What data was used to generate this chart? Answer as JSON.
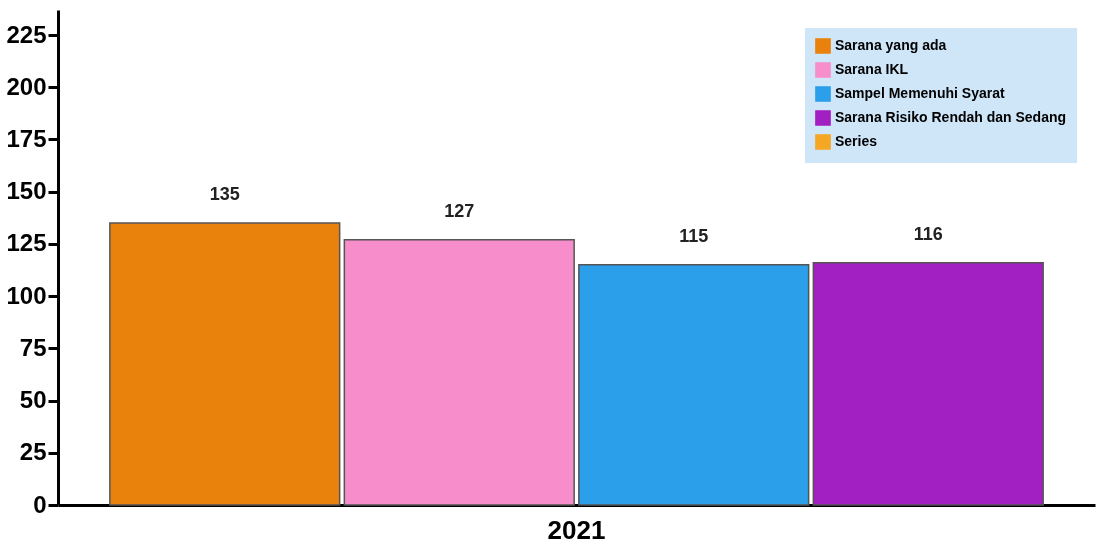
{
  "chart_data": {
    "type": "bar",
    "categories": [
      "2021"
    ],
    "series": [
      {
        "name": "Sarana yang ada",
        "color": "#e8820c",
        "values": [
          135
        ]
      },
      {
        "name": "Sarana IKL",
        "color": "#f78dcb",
        "values": [
          127
        ]
      },
      {
        "name": "Sampel Memenuhi Syarat",
        "color": "#2b9fea",
        "values": [
          115
        ]
      },
      {
        "name": "Sarana Risiko Rendah dan Sedang",
        "color": "#a21fc2",
        "values": [
          116
        ]
      },
      {
        "name": "Series",
        "type": "line",
        "color": "#f5a623",
        "values": [
          null
        ]
      }
    ],
    "ylim": [
      0,
      237
    ],
    "yticks": [
      0,
      25,
      50,
      75,
      100,
      125,
      150,
      175,
      200,
      225
    ],
    "data_labels": true,
    "legend": "top right",
    "grid": false
  }
}
